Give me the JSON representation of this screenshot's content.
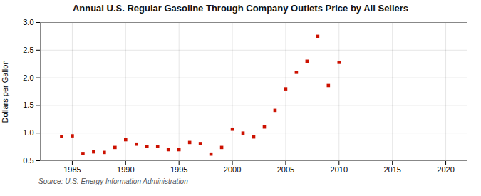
{
  "chart_data": {
    "type": "scatter",
    "title": "Annual U.S. Regular Gasoline Through Company Outlets Price by All Sellers",
    "ylabel": "Dollars per Gallon",
    "source": "Source: U.S. Energy Information Administration",
    "x": [
      1984,
      1985,
      1986,
      1987,
      1988,
      1989,
      1990,
      1991,
      1992,
      1993,
      1994,
      1995,
      1996,
      1997,
      1998,
      1999,
      2000,
      2001,
      2002,
      2003,
      2004,
      2005,
      2006,
      2007,
      2008,
      2009,
      2010
    ],
    "values": [
      0.94,
      0.95,
      0.63,
      0.66,
      0.65,
      0.74,
      0.88,
      0.8,
      0.76,
      0.76,
      0.7,
      0.7,
      0.83,
      0.81,
      0.62,
      0.74,
      1.07,
      1.0,
      0.93,
      1.11,
      1.41,
      1.8,
      2.1,
      2.3,
      2.75,
      1.86,
      2.28
    ],
    "color": "#cc1100",
    "marker": "square",
    "xlim": [
      1982,
      2022
    ],
    "ylim": [
      0.5,
      3.0
    ],
    "xticks": [
      1985,
      1990,
      1995,
      2000,
      2005,
      2010,
      2015,
      2020
    ],
    "yticks": [
      0.5,
      {
        "value": 1.0,
        "label": "1.0"
      },
      1.5,
      {
        "value": 2.0,
        "label": "2.0"
      },
      2.5,
      {
        "value": 3.0,
        "label": "3.0"
      }
    ],
    "grid": true
  }
}
